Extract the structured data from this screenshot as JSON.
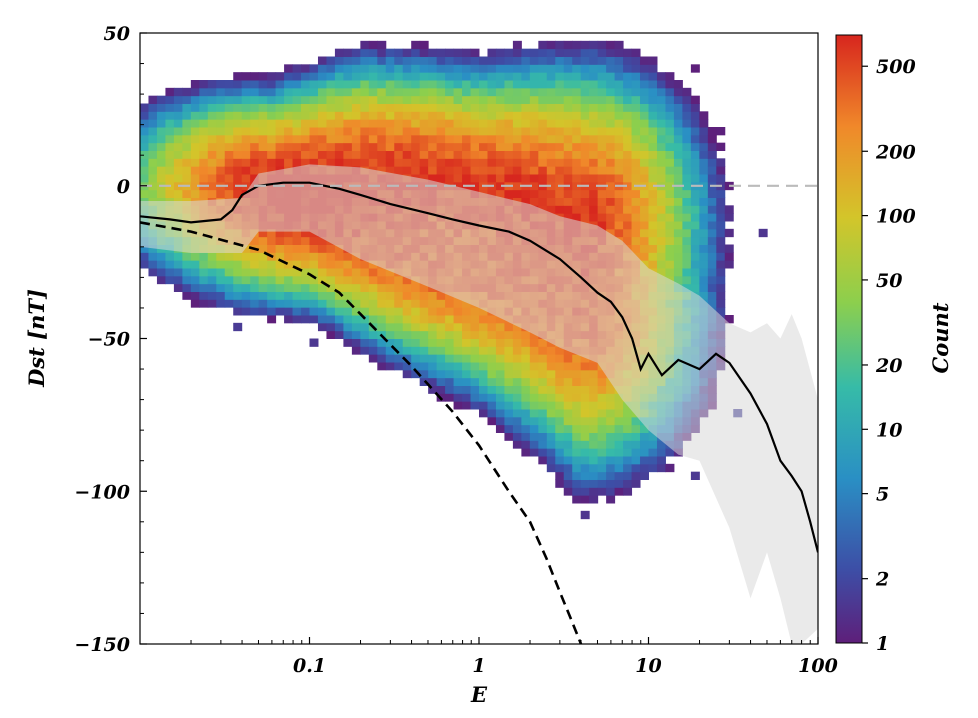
{
  "chart_data": {
    "type": "heatmap",
    "title": "",
    "xlabel": "E",
    "ylabel": "Dst [nT]",
    "xscale": "log",
    "xlim": [
      0.01,
      100
    ],
    "ylim": [
      -150,
      50
    ],
    "x_ticks": [
      {
        "value": 0.1,
        "label": "0.1"
      },
      {
        "value": 1,
        "label": "1"
      },
      {
        "value": 10,
        "label": "10"
      },
      {
        "value": 100,
        "label": "100"
      }
    ],
    "y_ticks": [
      {
        "value": 50,
        "label": "50"
      },
      {
        "value": 0,
        "label": "0"
      },
      {
        "value": -50,
        "label": "−50"
      },
      {
        "value": -100,
        "label": "−100"
      },
      {
        "value": -150,
        "label": "−150"
      }
    ],
    "colorbar": {
      "label": "Count",
      "scale": "log",
      "range": [
        1,
        700
      ],
      "colormap": [
        "#5e1f7a",
        "#3d4ea6",
        "#2a8fc4",
        "#36bba8",
        "#8ccf4d",
        "#d3c52a",
        "#f0882a",
        "#d7261e"
      ],
      "ticks": [
        {
          "value": 1,
          "label": "1"
        },
        {
          "value": 2,
          "label": "2"
        },
        {
          "value": 5,
          "label": "5"
        },
        {
          "value": 10,
          "label": "10"
        },
        {
          "value": 20,
          "label": "20"
        },
        {
          "value": 50,
          "label": "50"
        },
        {
          "value": 100,
          "label": "100"
        },
        {
          "value": 200,
          "label": "200"
        },
        {
          "value": 500,
          "label": "500"
        }
      ]
    },
    "density_ridges": [
      {
        "count": 550,
        "E": [
          0.06,
          0.1,
          0.2,
          0.5,
          1,
          2,
          4
        ],
        "Dst": [
          1,
          2,
          4,
          3,
          1,
          -3,
          -9
        ],
        "width": [
          10,
          11,
          12,
          12,
          12,
          14,
          16
        ]
      },
      {
        "count": 400,
        "E": [
          0.1,
          0.2,
          0.5,
          1,
          2,
          4
        ],
        "Dst": [
          -10,
          -17,
          -25,
          -30,
          -36,
          -45
        ],
        "width": [
          10,
          11,
          12,
          13,
          15,
          17
        ]
      }
    ],
    "series": [
      {
        "kind": "median",
        "style": "solid",
        "color": "#000000",
        "x": [
          0.01,
          0.015,
          0.02,
          0.03,
          0.035,
          0.04,
          0.05,
          0.07,
          0.1,
          0.15,
          0.2,
          0.3,
          0.5,
          0.7,
          1,
          1.5,
          2,
          3,
          4,
          5,
          6,
          7,
          8,
          9,
          10,
          12,
          15,
          20,
          25,
          30,
          40,
          50,
          60,
          70,
          80,
          90,
          100
        ],
        "y": [
          -10,
          -11,
          -12,
          -11,
          -8,
          -3,
          0,
          1,
          1,
          -1,
          -3,
          -6,
          -9,
          -11,
          -13,
          -15,
          -18,
          -24,
          -30,
          -35,
          -38,
          -43,
          -50,
          -60,
          -55,
          -62,
          -57,
          -60,
          -55,
          -58,
          -68,
          -78,
          -90,
          -95,
          -100,
          -110,
          -120
        ]
      },
      {
        "kind": "lower-envelope",
        "style": "dashed",
        "color": "#000000",
        "x": [
          0.01,
          0.02,
          0.05,
          0.1,
          0.15,
          0.2,
          0.3,
          0.4,
          0.5,
          0.7,
          1,
          1.5,
          2,
          2.5,
          3,
          3.5,
          4
        ],
        "y": [
          -12,
          -15,
          -21,
          -29,
          -35,
          -42,
          -52,
          -59,
          -65,
          -74,
          -85,
          -100,
          -110,
          -122,
          -133,
          -142,
          -150
        ]
      },
      {
        "kind": "zero-reference",
        "style": "dashed",
        "color": "#bbbbbb",
        "x": [
          0.01,
          100
        ],
        "y": [
          0,
          0
        ]
      }
    ],
    "spread_band": {
      "color": "#d9d9d9",
      "x": [
        0.01,
        0.02,
        0.04,
        0.05,
        0.1,
        0.2,
        0.5,
        1,
        2,
        3,
        5,
        7,
        10,
        15,
        20,
        30,
        40,
        50,
        60,
        70,
        80,
        100
      ],
      "upper": [
        -5,
        -5,
        -4,
        4,
        7,
        6,
        2,
        -2,
        -6,
        -10,
        -13,
        -18,
        -27,
        -32,
        -36,
        -45,
        -48,
        -45,
        -50,
        -42,
        -50,
        -70
      ],
      "lower": [
        -20,
        -22,
        -22,
        -15,
        -15,
        -24,
        -33,
        -40,
        -48,
        -53,
        -58,
        -70,
        -80,
        -88,
        -90,
        -112,
        -135,
        -120,
        -135,
        -150,
        -150,
        -145
      ]
    }
  }
}
